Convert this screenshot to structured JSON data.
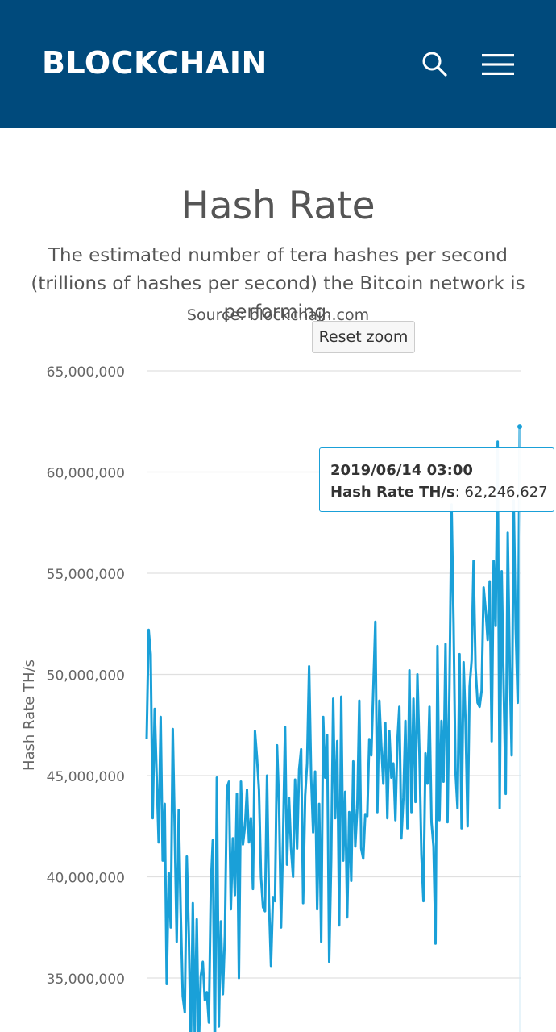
{
  "header": {
    "brand": "BLOCKCHAIN",
    "background": "#004a7c",
    "search_icon": "search-icon",
    "menu_icon": "hamburger-menu-icon"
  },
  "reset_zoom_label": "Reset zoom",
  "tooltip": {
    "date": "2019/06/14 03:00",
    "series_label": "Hash Rate TH/s",
    "value_text": "62,246,627"
  },
  "chart_data": {
    "type": "line",
    "title": "Hash Rate",
    "subtitle": "The estimated number of tera hashes per second (trillions of hashes per second) the Bitcoin network is performing.",
    "source": "Source: blockchain.com",
    "ylabel": "Hash Rate TH/s",
    "xlabel": "",
    "ylim": [
      32000000,
      65000000
    ],
    "yticks": [
      35000000,
      40000000,
      45000000,
      50000000,
      55000000,
      60000000,
      65000000
    ],
    "ytick_labels": [
      "35,000,000",
      "40,000,000",
      "45,000,000",
      "50,000,000",
      "55,000,000",
      "60,000,000",
      "65,000,000"
    ],
    "grid": true,
    "color": "#1aa0d8",
    "series": [
      {
        "values": [
          46800000,
          52200000,
          51000000,
          42900000,
          48300000,
          45000000,
          41700000,
          47900000,
          40800000,
          43600000,
          34700000,
          40200000,
          37500000,
          47300000,
          42400000,
          36800000,
          43300000,
          38200000,
          34100000,
          33300000,
          41000000,
          37200000,
          31400000,
          38700000,
          32200000,
          37900000,
          31600000,
          35100000,
          35800000,
          33900000,
          34300000,
          32800000,
          39600000,
          41800000,
          30800000,
          44900000,
          32600000,
          37800000,
          34200000,
          37100000,
          44400000,
          44700000,
          38400000,
          41900000,
          39100000,
          44100000,
          35000000,
          44700000,
          41600000,
          42500000,
          44300000,
          41700000,
          42900000,
          39400000,
          47200000,
          45900000,
          44300000,
          40000000,
          38500000,
          38300000,
          45000000,
          38800000,
          35600000,
          39000000,
          38800000,
          46500000,
          43600000,
          37500000,
          41900000,
          47400000,
          40600000,
          43900000,
          41400000,
          40000000,
          44800000,
          41400000,
          45300000,
          46300000,
          38700000,
          44000000,
          45600000,
          50400000,
          45000000,
          42200000,
          45200000,
          38400000,
          43600000,
          36800000,
          47900000,
          44900000,
          47000000,
          35800000,
          40800000,
          48800000,
          42900000,
          46700000,
          37600000,
          48900000,
          40800000,
          44200000,
          38000000,
          43200000,
          39800000,
          45700000,
          41500000,
          43400000,
          48700000,
          41400000,
          40900000,
          43100000,
          43000000,
          46800000,
          46000000,
          49300000,
          52600000,
          43200000,
          48700000,
          46500000,
          44600000,
          47600000,
          42900000,
          47200000,
          44900000,
          45600000,
          42800000,
          46700000,
          48400000,
          41900000,
          43900000,
          47700000,
          42400000,
          50200000,
          43200000,
          48800000,
          43700000,
          50000000,
          46200000,
          41100000,
          38800000,
          46100000,
          44600000,
          48400000,
          42700000,
          41500000,
          36700000,
          51400000,
          42800000,
          47700000,
          44700000,
          51500000,
          42700000,
          49700000,
          58400000,
          52500000,
          45200000,
          43400000,
          51000000,
          42400000,
          50600000,
          47600000,
          42500000,
          49400000,
          50700000,
          55600000,
          50300000,
          48600000,
          48400000,
          49200000,
          54300000,
          53200000,
          51700000,
          54600000,
          46700000,
          55600000,
          52400000,
          61500000,
          43400000,
          55100000,
          49300000,
          44100000,
          57000000,
          50400000,
          46000000,
          58600000,
          52300000,
          48600000,
          62246627
        ]
      }
    ]
  }
}
